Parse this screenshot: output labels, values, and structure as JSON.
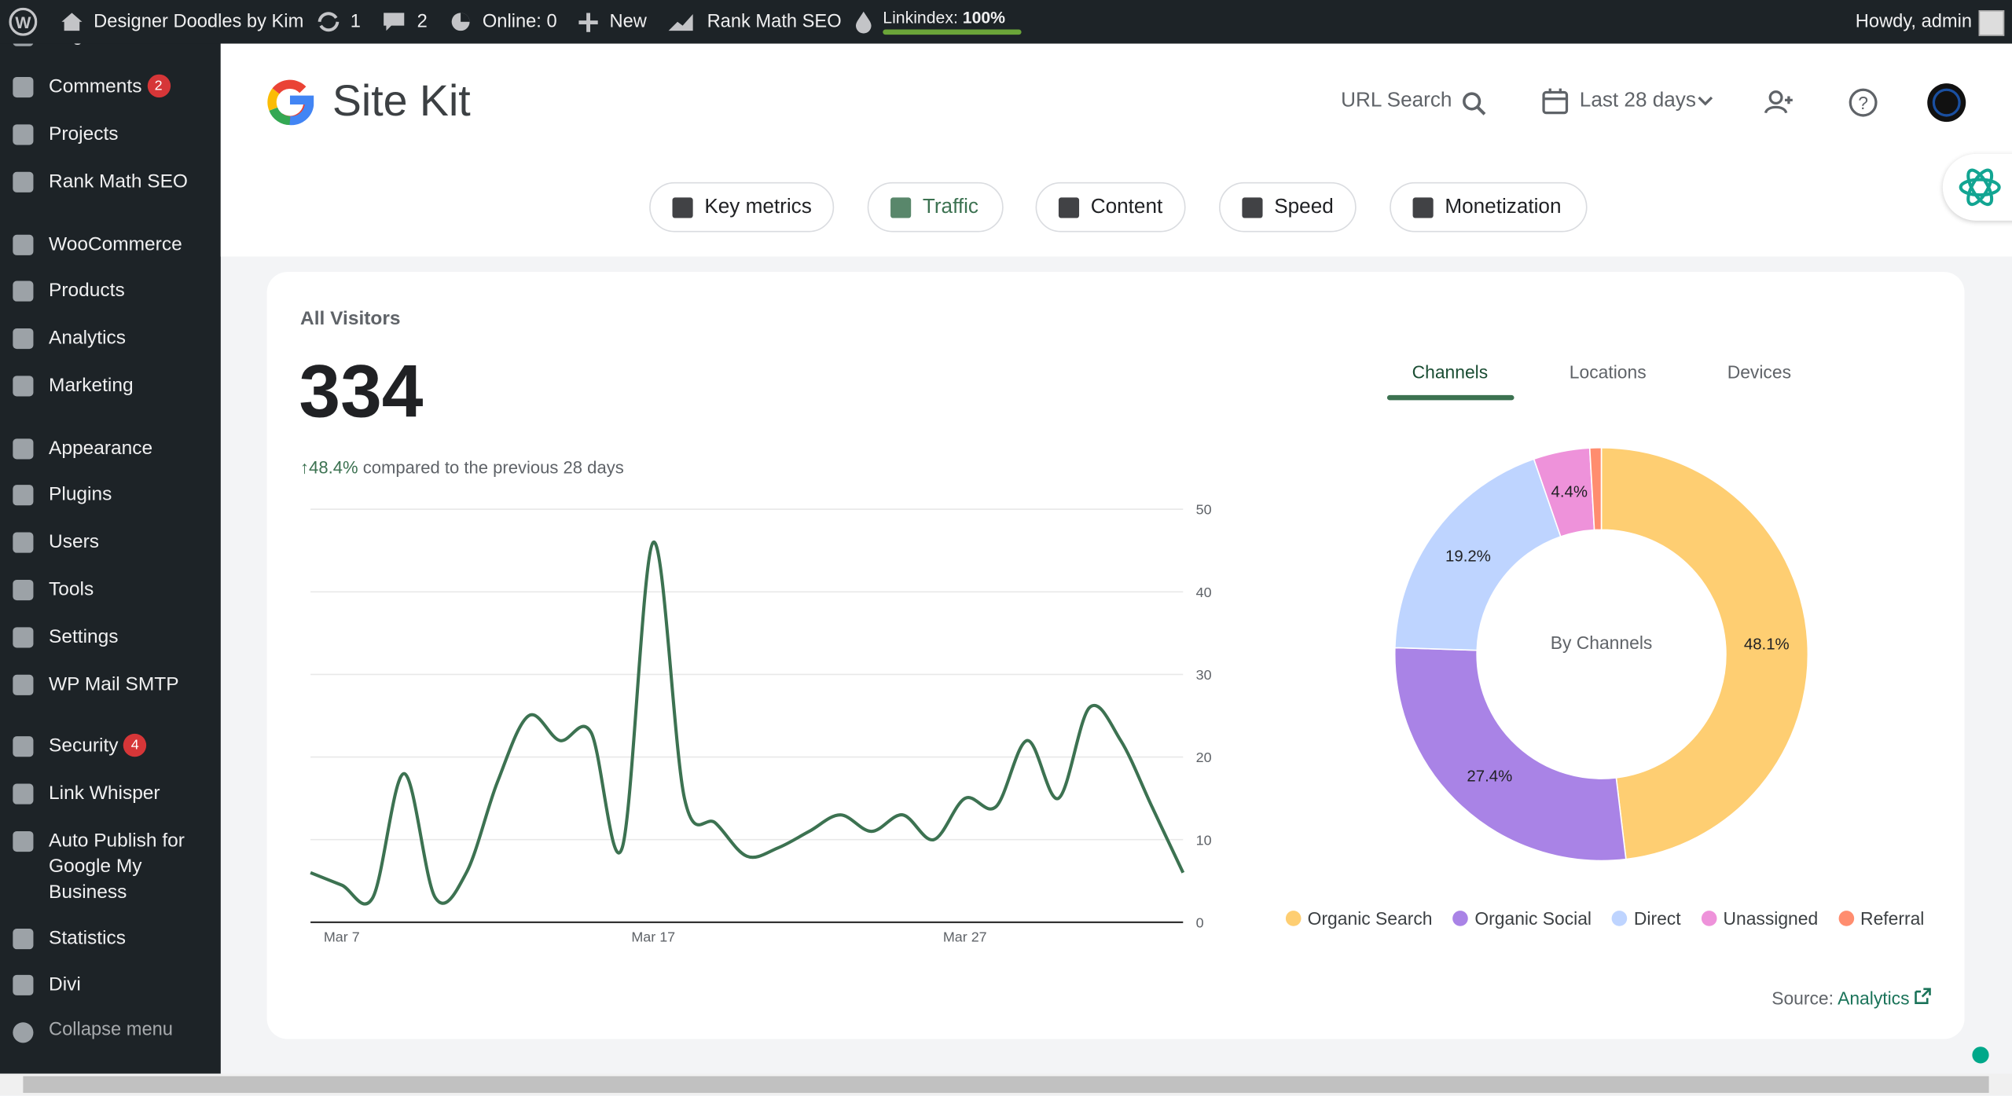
{
  "admin_bar": {
    "site_name": "Designer Doodles by Kim",
    "updates": "1",
    "comments": "2",
    "online": "Online: 0",
    "new": "New",
    "rank_math": "Rank Math SEO",
    "linkindex_label": "Linkindex:",
    "linkindex_value": "100%",
    "greeting": "Howdy, admin"
  },
  "sidebar": {
    "items": [
      {
        "label": "Pages"
      },
      {
        "label": "Comments",
        "badge": "2"
      },
      {
        "label": "Projects"
      },
      {
        "label": "Rank Math SEO"
      },
      {
        "label": "WooCommerce"
      },
      {
        "label": "Products"
      },
      {
        "label": "Analytics"
      },
      {
        "label": "Marketing"
      },
      {
        "label": "Appearance"
      },
      {
        "label": "Plugins"
      },
      {
        "label": "Users"
      },
      {
        "label": "Tools"
      },
      {
        "label": "Settings"
      },
      {
        "label": "WP Mail SMTP"
      },
      {
        "label": "Security",
        "badge": "4"
      },
      {
        "label": "Link Whisper"
      },
      {
        "label": "Auto Publish for Google My Business"
      },
      {
        "label": "Statistics"
      },
      {
        "label": "Divi"
      }
    ],
    "collapse": "Collapse menu"
  },
  "header": {
    "product": "Site Kit",
    "url_search": "URL Search",
    "date_range": "Last 28 days"
  },
  "nav_tabs": [
    "Key metrics",
    "Traffic",
    "Content",
    "Speed",
    "Monetization"
  ],
  "active_tab": 1,
  "card": {
    "title": "All Visitors",
    "total": 334,
    "change": "48.4%",
    "comparison": "compared to the previous 28 days",
    "source_label": "Source:",
    "source_link": "Analytics"
  },
  "chart_data": [
    {
      "type": "line",
      "categories": [
        null,
        "Mar 7",
        null,
        null,
        null,
        null,
        null,
        null,
        null,
        null,
        null,
        "Mar 17",
        null,
        null,
        null,
        null,
        null,
        null,
        null,
        null,
        null,
        "Mar 27",
        null,
        null,
        null,
        null,
        null,
        null,
        null
      ],
      "series": [
        {
          "name": "All Visitors",
          "color": "#3c7251",
          "values": [
            6,
            4.5,
            3,
            18,
            3,
            6,
            17,
            25,
            22,
            23,
            9,
            46,
            15,
            12,
            8,
            9,
            11,
            13,
            11,
            13,
            10,
            15,
            14,
            22,
            15,
            26,
            22,
            14,
            6
          ]
        }
      ],
      "ylim": [
        0,
        50
      ],
      "yticks": [
        0,
        10,
        20,
        30,
        40,
        50
      ],
      "grid": true
    },
    {
      "type": "pie",
      "tabs": [
        "Channels",
        "Locations",
        "Devices"
      ],
      "active_tab": 0,
      "center_label": "By Channels",
      "categories": [
        "Organic Search",
        "Organic Social",
        "Direct",
        "Unassigned",
        "Referral"
      ],
      "values": [
        48.1,
        27.4,
        19.2,
        4.4,
        0.9
      ],
      "value_labels": [
        "48.1%",
        "27.4%",
        "19.2%",
        "4.4%",
        null
      ],
      "colors": [
        "#fece72",
        "#a983e6",
        "#bed4ff",
        "#ee92da",
        "#ff8d6f"
      ],
      "legend": "bottom"
    }
  ]
}
